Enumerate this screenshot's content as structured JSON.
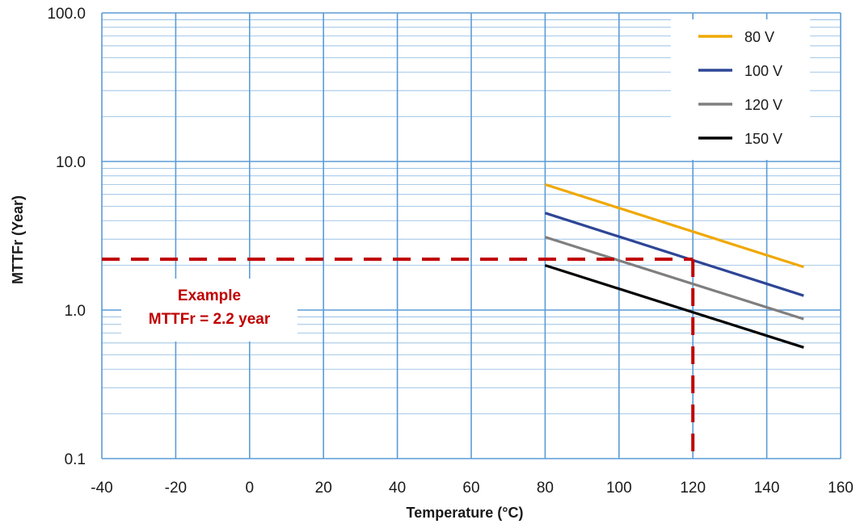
{
  "chart_data": {
    "type": "line",
    "title": "",
    "xlabel": "Temperature (°C)",
    "ylabel": "MTTFr (Year)",
    "xlim": [
      -40,
      160
    ],
    "ylim": [
      0.1,
      100
    ],
    "yscale": "log",
    "x_ticks": [
      -40,
      -20,
      0,
      20,
      40,
      60,
      80,
      100,
      120,
      140,
      160
    ],
    "x_tick_labels": [
      "-40",
      "-20",
      "0",
      "20",
      "40",
      "60",
      "80",
      "100",
      "120",
      "140",
      "160"
    ],
    "y_ticks": [
      0.1,
      1,
      10,
      100
    ],
    "y_tick_labels": [
      "0.1",
      "1.0",
      "10.0",
      "100.0"
    ],
    "grid": true,
    "legend_position": "top-right",
    "series": [
      {
        "name": "80 V",
        "color": "#f0a800",
        "x": [
          80,
          150
        ],
        "y": [
          7.0,
          1.95
        ]
      },
      {
        "name": "100 V",
        "color": "#2e4696",
        "x": [
          80,
          150
        ],
        "y": [
          4.5,
          1.25
        ]
      },
      {
        "name": "120 V",
        "color": "#7f7f7f",
        "x": [
          80,
          150
        ],
        "y": [
          3.1,
          0.87
        ]
      },
      {
        "name": "150 V",
        "color": "#000000",
        "x": [
          80,
          150
        ],
        "y": [
          2.0,
          0.56
        ]
      }
    ],
    "annotation": {
      "lines": [
        "Example",
        "MTTFr = 2.2 year"
      ],
      "x": 120,
      "y": 2.2,
      "color": "#c00000"
    }
  }
}
